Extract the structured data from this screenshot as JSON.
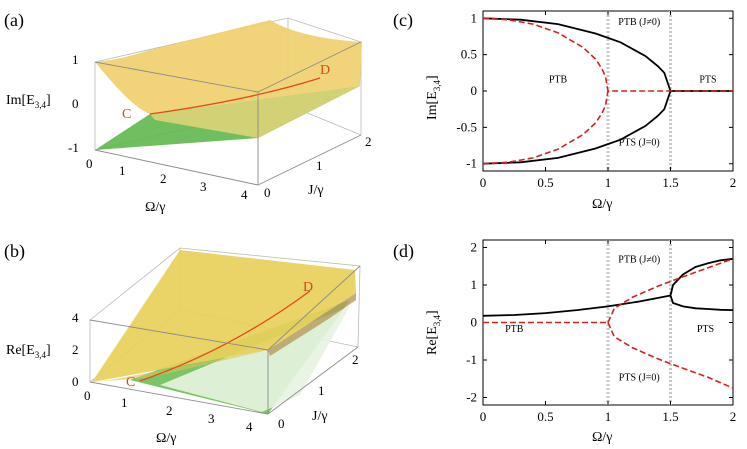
{
  "chart_data": [
    {
      "id": "a",
      "panel_label": "(a)",
      "type": "surface3d",
      "zlabel": "Im[E",
      "zlabel_sub": "3,4",
      "zlabel_end": "]",
      "xlabel": "Ω/γ",
      "ylabel": "J/γ",
      "x_ticks": [
        "0",
        "1",
        "2",
        "3",
        "4"
      ],
      "y_ticks": [
        "0",
        "1",
        "2"
      ],
      "z_ticks": [
        "1",
        "0",
        "-1"
      ],
      "xlim": [
        0,
        4
      ],
      "ylim": [
        0,
        2
      ],
      "zlim": [
        -1,
        1
      ],
      "points": [
        {
          "name": "C"
        },
        {
          "name": "D"
        }
      ],
      "colors": {
        "upper": "#f0cf6a",
        "lower": "#5fb84f",
        "curve": "#e24a1c",
        "point": "#d34a1c"
      }
    },
    {
      "id": "b",
      "panel_label": "(b)",
      "type": "surface3d",
      "zlabel": "Re[E",
      "zlabel_sub": "3,4",
      "zlabel_end": "]",
      "xlabel": "Ω/γ",
      "ylabel": "J/γ",
      "x_ticks": [
        "0",
        "1",
        "2",
        "3",
        "4"
      ],
      "y_ticks": [
        "0",
        "1",
        "2"
      ],
      "z_ticks": [
        "4",
        "2",
        "0"
      ],
      "xlim": [
        0,
        4
      ],
      "ylim": [
        0,
        2
      ],
      "zlim": [
        0,
        4
      ],
      "points": [
        {
          "name": "C"
        },
        {
          "name": "D"
        }
      ],
      "colors": {
        "upper": "#e8cf5a",
        "lower": "#6cbf56",
        "curve": "#e24a1c",
        "point": "#d34a1c"
      }
    },
    {
      "id": "c",
      "panel_label": "(c)",
      "type": "line",
      "ylabel": "Im[E",
      "ylabel_sub": "3,4",
      "ylabel_end": "]",
      "xlabel": "Ω/γ",
      "xlim": [
        0,
        2
      ],
      "ylim": [
        -1.1,
        1.1
      ],
      "x_ticks": [
        0,
        0.5,
        1,
        1.5,
        2
      ],
      "x_tick_labels": [
        "0",
        "0.5",
        "1",
        "1.5",
        "2"
      ],
      "y_ticks": [
        1,
        0.5,
        0,
        -0.5,
        -1
      ],
      "y_tick_labels": [
        "1",
        "0.5",
        "0",
        "-0.5",
        "-1"
      ],
      "dotted_x": [
        1,
        1.5
      ],
      "regions": [
        {
          "text": "PTB",
          "x": 0.6,
          "y": 0.12
        },
        {
          "text": "PTB (J≠0)",
          "x": 1.25,
          "y": 0.91
        },
        {
          "text": "PTS",
          "x": 1.8,
          "y": 0.12
        },
        {
          "text": "PTS (J=0)",
          "x": 1.25,
          "y": -0.75
        }
      ],
      "series": [
        {
          "style": "solid",
          "color": "#000000",
          "x": [
            0,
            0.3,
            0.6,
            0.9,
            1.1,
            1.3,
            1.4,
            1.45,
            1.5,
            2
          ],
          "y": [
            0.999,
            0.98,
            0.92,
            0.79,
            0.67,
            0.48,
            0.34,
            0.25,
            0,
            0
          ]
        },
        {
          "style": "solid",
          "color": "#000000",
          "x": [
            0,
            0.3,
            0.6,
            0.9,
            1.1,
            1.3,
            1.4,
            1.45,
            1.5
          ],
          "y": [
            -0.999,
            -0.98,
            -0.92,
            -0.79,
            -0.67,
            -0.48,
            -0.34,
            -0.25,
            0
          ]
        },
        {
          "style": "dashed",
          "color": "#d62020",
          "x": [
            0,
            0.2,
            0.4,
            0.6,
            0.8,
            0.9,
            0.95,
            0.98,
            1,
            2
          ],
          "y": [
            1,
            0.98,
            0.92,
            0.8,
            0.6,
            0.44,
            0.31,
            0.2,
            0,
            0
          ]
        },
        {
          "style": "dashed",
          "color": "#d62020",
          "x": [
            0,
            0.2,
            0.4,
            0.6,
            0.8,
            0.9,
            0.95,
            0.98,
            1
          ],
          "y": [
            -1,
            -0.98,
            -0.92,
            -0.8,
            -0.6,
            -0.44,
            -0.31,
            -0.2,
            0
          ]
        }
      ]
    },
    {
      "id": "d",
      "panel_label": "(d)",
      "type": "line",
      "ylabel": "Re[E",
      "ylabel_sub": "3,4",
      "ylabel_end": "]",
      "xlabel": "Ω/γ",
      "xlim": [
        0,
        2
      ],
      "ylim": [
        -2.2,
        2.2
      ],
      "x_ticks": [
        0,
        0.5,
        1,
        1.5,
        2
      ],
      "x_tick_labels": [
        "0",
        "0.5",
        "1",
        "1.5",
        "2"
      ],
      "y_ticks": [
        2,
        1,
        0,
        -1,
        -2
      ],
      "y_tick_labels": [
        "2",
        "1",
        "0",
        "-1",
        "-2"
      ],
      "dotted_x": [
        1,
        1.5
      ],
      "regions": [
        {
          "text": "PTB (J≠0)",
          "x": 1.25,
          "y": 1.6
        },
        {
          "text": "PTB",
          "x": 0.25,
          "y": -0.25
        },
        {
          "text": "PTS",
          "x": 1.78,
          "y": -0.25
        },
        {
          "text": "PTS (J=0)",
          "x": 1.25,
          "y": -1.55
        }
      ],
      "series": [
        {
          "style": "solid",
          "color": "#000000",
          "x": [
            0,
            0.25,
            0.5,
            0.75,
            1,
            1.25,
            1.5
          ],
          "y": [
            0.18,
            0.2,
            0.25,
            0.33,
            0.43,
            0.56,
            0.72
          ]
        },
        {
          "style": "solid",
          "color": "#000000",
          "x": [
            1.5,
            1.52,
            1.6,
            1.7,
            1.8,
            1.9,
            2
          ],
          "y": [
            0.72,
            1.0,
            1.28,
            1.48,
            1.58,
            1.66,
            1.7
          ]
        },
        {
          "style": "solid",
          "color": "#000000",
          "x": [
            1.5,
            1.52,
            1.6,
            1.7,
            1.8,
            1.9,
            2
          ],
          "y": [
            0.72,
            0.52,
            0.43,
            0.38,
            0.36,
            0.34,
            0.33
          ]
        },
        {
          "style": "dashed",
          "color": "#d62020",
          "x": [
            0,
            0.5,
            1
          ],
          "y": [
            0,
            0,
            0
          ]
        },
        {
          "style": "dashed",
          "color": "#d62020",
          "x": [
            1,
            1.05,
            1.2,
            1.4,
            1.6,
            1.8,
            2
          ],
          "y": [
            0,
            0.38,
            0.68,
            0.97,
            1.22,
            1.46,
            1.7
          ]
        },
        {
          "style": "dashed",
          "color": "#d62020",
          "x": [
            1,
            1.05,
            1.2,
            1.4,
            1.6,
            1.8,
            2
          ],
          "y": [
            0,
            -0.38,
            -0.68,
            -0.97,
            -1.22,
            -1.46,
            -1.75
          ]
        }
      ]
    }
  ]
}
